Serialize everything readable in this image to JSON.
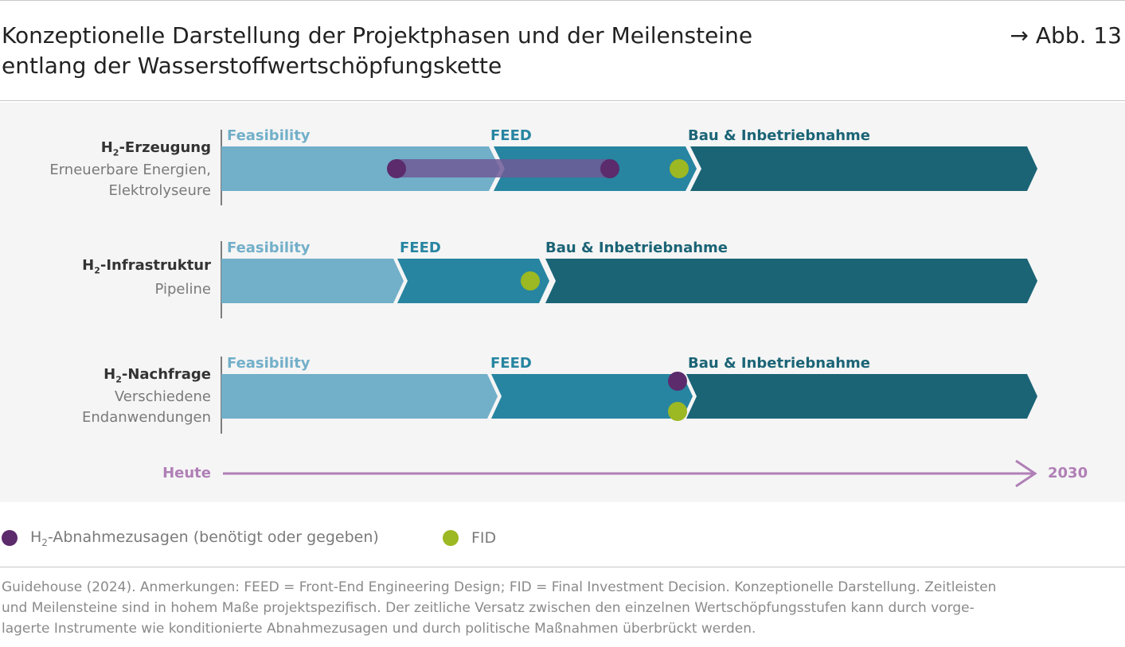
{
  "header": {
    "title_line1": "Konzeptionelle Darstellung der Projektphasen und der Meilensteine",
    "title_line2": "entlang der Wasserstoffwertschöpfungskette",
    "figure_ref": "→ Abb. 13"
  },
  "colors": {
    "feasibility": "#72afc9",
    "feed": "#2785a1",
    "bau": "#1b6476",
    "offtake": "#5b2b6c",
    "fid": "#9cb822",
    "timeline": "#b07fb6",
    "phase_label_light": "#72afc9",
    "phase_label_dark": "#1b6476"
  },
  "phases": {
    "feasibility": "Feasibility",
    "feed": "FEED",
    "bau": "Bau & Inbetriebnahme"
  },
  "rows": [
    {
      "h2": "H",
      "sub": "2",
      "name": "-Erzeugung",
      "desc1": "Erneuerbare Energien,",
      "desc2": "Elektrolyseure"
    },
    {
      "h2": "H",
      "sub": "2",
      "name": "-Infrastruktur",
      "desc1": "Pipeline",
      "desc2": ""
    },
    {
      "h2": "H",
      "sub": "2",
      "name": "-Nachfrage",
      "desc1": "Verschiedene",
      "desc2": "Endanwendungen"
    }
  ],
  "timeline": {
    "start": "Heute",
    "end": "2030"
  },
  "legend": {
    "offtake_prefix": "H",
    "offtake_sub": "2",
    "offtake_text": "-Abnahmezusagen (benötigt oder gegeben)",
    "fid": "FID"
  },
  "note": {
    "line1": "Guidehouse (2024). Anmerkungen: FEED = Front-End Engineering Design; FID = Final Investment Decision. Konzeptionelle Darstellung. Zeitleisten",
    "line2": "und Meilensteine sind in hohem Maße projektspezifisch. Der zeitliche Versatz zwischen den einzelnen Wertschöpfungsstufen kann durch vorge-",
    "line3": "lagerte Instrumente wie konditionierte Abnahmezusagen und durch politische Maßnahmen überbrückt werden."
  }
}
